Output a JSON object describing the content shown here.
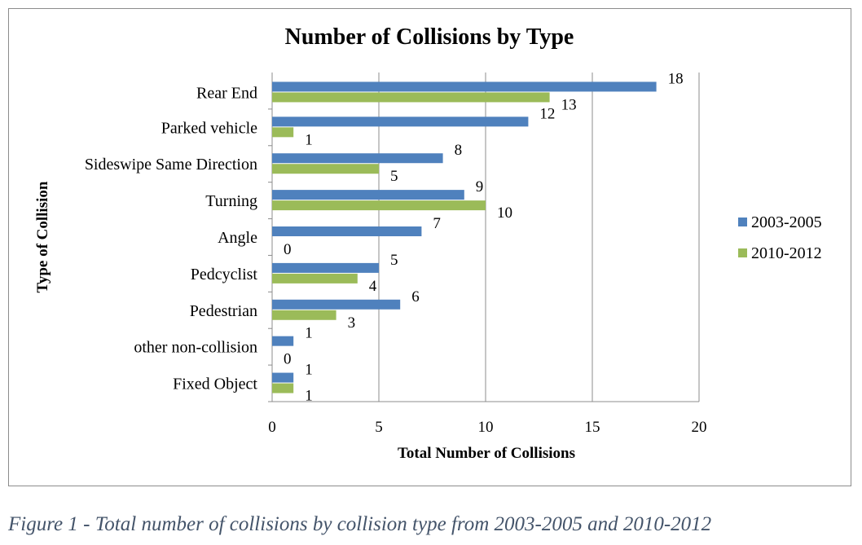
{
  "chart_data": {
    "type": "bar",
    "orientation": "horizontal",
    "title": "Number of Collisions by Type",
    "xlabel": "Total Number of Collisions",
    "ylabel": "Type of Collision",
    "categories": [
      "Rear End",
      "Parked vehicle",
      "Sideswipe Same Direction",
      "Turning",
      "Angle",
      "Pedcyclist",
      "Pedestrian",
      "other non-collision",
      "Fixed Object"
    ],
    "series": [
      {
        "name": "2003-2005",
        "color": "#4f81bd",
        "values": [
          18,
          12,
          8,
          9,
          7,
          5,
          6,
          1,
          1
        ]
      },
      {
        "name": "2010-2012",
        "color": "#9bbb59",
        "values": [
          13,
          1,
          5,
          10,
          0,
          4,
          3,
          0,
          1
        ]
      }
    ],
    "xlim": [
      0,
      20
    ],
    "xticks": [
      "0",
      "5",
      "10",
      "15",
      "20"
    ],
    "grid": "vertical",
    "legend": "right",
    "data_labels": true
  },
  "caption": "Figure 1 - Total number of collisions by collision type from 2003-2005 and 2010-2012"
}
